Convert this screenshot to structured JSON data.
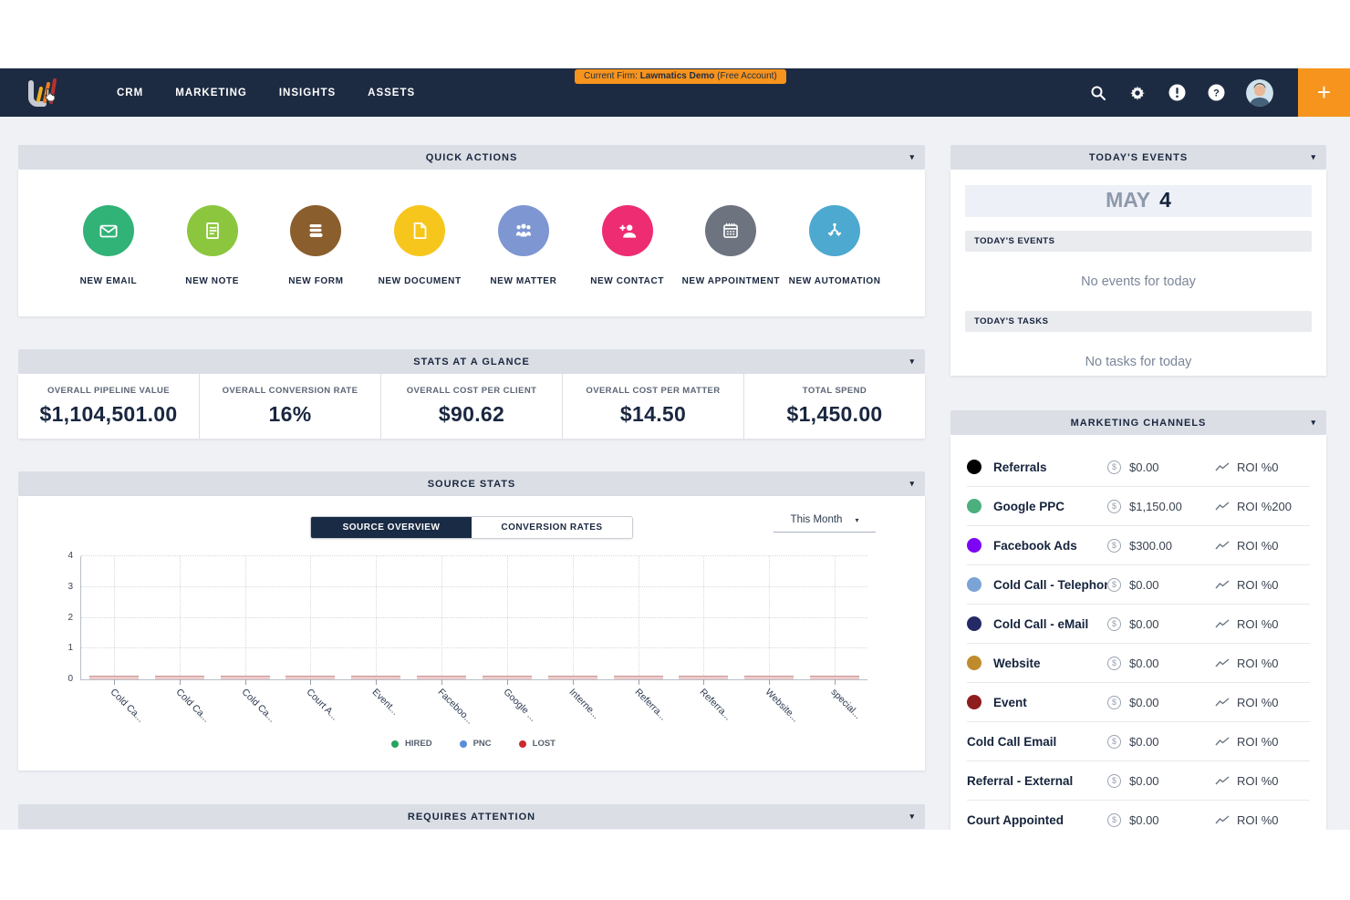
{
  "navbar": {
    "menu": [
      "CRM",
      "MARKETING",
      "INSIGHTS",
      "ASSETS"
    ],
    "firm_badge": {
      "prefix": "Current Firm:",
      "name": "Lawmatics Demo",
      "suffix": "(Free Account)"
    },
    "icons": [
      "search",
      "settings",
      "alerts",
      "help",
      "avatar"
    ],
    "plus_label": "+",
    "colors": {
      "bar": "#1d2b42",
      "accent_orange": "#f7941d"
    }
  },
  "quick_actions": {
    "title": "QUICK ACTIONS",
    "items": [
      {
        "label": "NEW EMAIL",
        "color": "#31b276",
        "icon": "email"
      },
      {
        "label": "NEW NOTE",
        "color": "#8cc63e",
        "icon": "note"
      },
      {
        "label": "NEW FORM",
        "color": "#8b5e2e",
        "icon": "form"
      },
      {
        "label": "NEW DOCUMENT",
        "color": "#f6c61d",
        "icon": "document"
      },
      {
        "label": "NEW MATTER",
        "color": "#7e96d2",
        "icon": "matter"
      },
      {
        "label": "NEW CONTACT",
        "color": "#ee2c72",
        "icon": "contact"
      },
      {
        "label": "NEW APPOINTMENT",
        "color": "#6d7480",
        "icon": "appointment"
      },
      {
        "label": "NEW AUTOMATION",
        "color": "#4da9cf",
        "icon": "automation"
      }
    ]
  },
  "stats": {
    "title": "STATS AT A GLANCE",
    "items": [
      {
        "label": "OVERALL PIPELINE VALUE",
        "value": "$1,104,501.00"
      },
      {
        "label": "OVERALL CONVERSION RATE",
        "value": "16%"
      },
      {
        "label": "OVERALL COST PER CLIENT",
        "value": "$90.62"
      },
      {
        "label": "OVERALL COST PER MATTER",
        "value": "$14.50"
      },
      {
        "label": "TOTAL SPEND",
        "value": "$1,450.00"
      }
    ]
  },
  "source_stats": {
    "title": "SOURCE STATS",
    "tabs": [
      {
        "label": "SOURCE OVERVIEW",
        "active": true
      },
      {
        "label": "CONVERSION RATES",
        "active": false
      }
    ],
    "period": "This Month"
  },
  "chart_data": {
    "type": "bar",
    "categories": [
      "Cold Ca...",
      "Cold Ca...",
      "Cold Ca...",
      "Court A...",
      "Event...",
      "Faceboo...",
      "Google ...",
      "Interne...",
      "Referra...",
      "Referra...",
      "Website...",
      "special..."
    ],
    "series": [
      {
        "name": "HIRED",
        "color": "#27a35f",
        "values": [
          0,
          0,
          0,
          0,
          0,
          0,
          0,
          0,
          0,
          0,
          0,
          0
        ]
      },
      {
        "name": "PNC",
        "color": "#5c8bd9",
        "values": [
          0,
          0,
          0,
          0,
          0,
          0,
          0,
          0,
          0,
          0,
          0,
          0
        ]
      },
      {
        "name": "LOST",
        "color": "#cb2b31",
        "values": [
          0,
          0,
          0,
          0,
          0,
          0,
          0,
          0,
          0,
          0,
          0,
          0
        ]
      }
    ],
    "title": "",
    "xlabel": "",
    "ylabel": "",
    "ylim": [
      0,
      4
    ],
    "yticks": [
      4,
      3,
      2,
      1,
      0
    ],
    "grid": "dotted",
    "legend_position": "bottom"
  },
  "requires_attention": {
    "title": "REQUIRES ATTENTION"
  },
  "today": {
    "title": "TODAY'S EVENTS",
    "date_month": "MAY",
    "date_day": "4",
    "events_header": "TODAY'S EVENTS",
    "events_empty": "No events for today",
    "tasks_header": "TODAY'S TASKS",
    "tasks_empty": "No tasks for today"
  },
  "marketing_channels": {
    "title": "MARKETING CHANNELS",
    "rows": [
      {
        "name": "Referrals",
        "color": "#000000",
        "spend": "$0.00",
        "roi": "ROI %0"
      },
      {
        "name": "Google PPC",
        "color": "#4caf7e",
        "spend": "$1,150.00",
        "roi": "ROI %200"
      },
      {
        "name": "Facebook Ads",
        "color": "#7d05f6",
        "spend": "$300.00",
        "roi": "ROI %0"
      },
      {
        "name": "Cold Call - Telephone",
        "color": "#7ba3d6",
        "spend": "$0.00",
        "roi": "ROI %0"
      },
      {
        "name": "Cold Call - eMail",
        "color": "#232a66",
        "spend": "$0.00",
        "roi": "ROI %0"
      },
      {
        "name": "Website",
        "color": "#c08b2d",
        "spend": "$0.00",
        "roi": "ROI %0"
      },
      {
        "name": "Event",
        "color": "#8f1d1d",
        "spend": "$0.00",
        "roi": "ROI %0"
      },
      {
        "name": "Cold Call Email",
        "spend": "$0.00",
        "roi": "ROI %0"
      },
      {
        "name": "Referral - External",
        "spend": "$0.00",
        "roi": "ROI %0"
      },
      {
        "name": "Court Appointed",
        "spend": "$0.00",
        "roi": "ROI %0"
      }
    ]
  }
}
